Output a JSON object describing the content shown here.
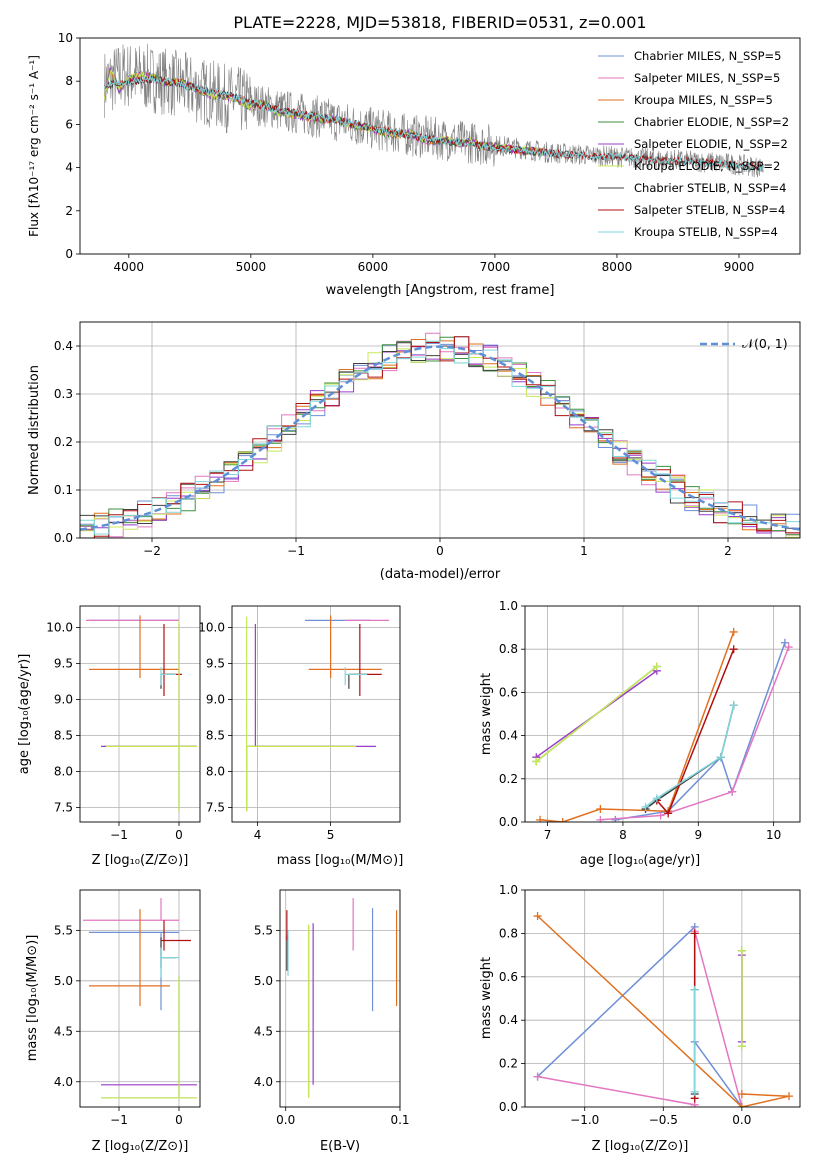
{
  "colors": {
    "Chabrier MILES": "#6f8fd6",
    "Salpeter MILES": "#e377c2",
    "Kroupa MILES": "#e07020",
    "Chabrier ELODIE": "#3e8f3e",
    "Salpeter ELODIE": "#9a3cc9",
    "Kroupa ELODIE": "#c8e85a",
    "Chabrier STELIB": "#404040",
    "Salpeter STELIB": "#b01010",
    "Kroupa STELIB": "#7fd6dc"
  },
  "chart_data": [
    {
      "id": "spectrum",
      "type": "line",
      "title": "PLATE=2228, MJD=53818, FIBERID=0531, z=0.001",
      "xlabel": "wavelength [Angstrom, rest frame]",
      "ylabel": "Flux [fλ10⁻¹⁷ erg cm⁻² s⁻¹ A⁻¹]",
      "xlim": [
        3600,
        9500
      ],
      "ylim": [
        0,
        10
      ],
      "xticks": [
        "4000",
        "5000",
        "6000",
        "7000",
        "8000",
        "9000"
      ],
      "yticks": [
        "0",
        "2",
        "4",
        "6",
        "8",
        "10"
      ],
      "legend_position": "top-right",
      "legend": [
        "Chabrier MILES, N_SSP=5",
        "Salpeter MILES, N_SSP=5",
        "Kroupa MILES, N_SSP=5",
        "Chabrier ELODIE, N_SSP=2",
        "Salpeter ELODIE, N_SSP=2",
        "Kroupa ELODIE, N_SSP=2",
        "Chabrier STELIB, N_SSP=4",
        "Salpeter STELIB, N_SSP=4",
        "Kroupa STELIB, N_SSP=4"
      ],
      "data_line": {
        "x": [
          3800,
          3950,
          4100,
          4300,
          4500,
          4800,
          5000,
          5300,
          5600,
          6000,
          6300,
          6600,
          6900,
          7200,
          7450,
          7700,
          8000,
          8300,
          8600,
          8900,
          9200
        ],
        "y": [
          7.9,
          8.3,
          8.2,
          8.0,
          7.7,
          7.2,
          7.0,
          6.6,
          6.3,
          5.8,
          5.5,
          5.3,
          5.1,
          4.9,
          4.7,
          4.6,
          4.5,
          4.4,
          4.3,
          4.2,
          4.0
        ]
      },
      "model_x": [
        3800,
        3850,
        3920,
        4000,
        4100,
        4200,
        4300,
        4400,
        4500,
        4600,
        4700,
        4800,
        4900,
        5000,
        5100,
        5200,
        5300,
        5400,
        5500,
        5600,
        5700,
        5800,
        5900,
        6000,
        6100,
        6200,
        6300,
        6400,
        6500,
        6600,
        6700,
        6800,
        6900,
        7000,
        7100,
        7200,
        7300,
        7400
      ],
      "model_y": [
        7.3,
        8.6,
        7.6,
        8.1,
        8.3,
        8.2,
        7.9,
        8.0,
        7.8,
        7.5,
        7.3,
        7.3,
        7.1,
        6.8,
        7.0,
        6.6,
        6.5,
        6.4,
        6.3,
        6.2,
        6.3,
        6.0,
        5.9,
        5.8,
        5.6,
        5.5,
        5.6,
        5.3,
        5.2,
        5.3,
        5.1,
        5.2,
        5.0,
        5.0,
        4.9,
        4.8,
        4.8,
        4.7
      ],
      "stelib_x": [
        3800,
        4000,
        4200,
        4400,
        4600,
        4800,
        5000,
        5200,
        5400,
        5600,
        5800,
        6000,
        6200,
        6400,
        6600,
        6800,
        7000,
        7200,
        7400,
        7600,
        7800,
        8000,
        8200,
        8400,
        8600,
        8800,
        9000,
        9200
      ],
      "stelib_y": [
        7.8,
        8.0,
        8.1,
        7.9,
        7.6,
        7.4,
        7.0,
        6.7,
        6.5,
        6.3,
        6.1,
        5.8,
        5.6,
        5.4,
        5.2,
        5.1,
        4.9,
        4.8,
        4.7,
        4.6,
        4.5,
        4.5,
        4.4,
        4.3,
        4.3,
        4.2,
        4.1,
        4.0
      ]
    },
    {
      "id": "residuals",
      "type": "line",
      "xlabel": "(data-model)/error",
      "ylabel": "Normed distribution",
      "xlim": [
        -2.5,
        2.5
      ],
      "ylim": [
        0,
        0.45
      ],
      "xticks": [
        "−2",
        "−1",
        "0",
        "1",
        "2"
      ],
      "yticks": [
        "0.0",
        "0.1",
        "0.2",
        "0.3",
        "0.4"
      ],
      "legend_position": "top-right",
      "legend": [
        "𝒩(0, 1)"
      ],
      "bin_width": 0.1,
      "grid": true
    },
    {
      "id": "age-vs-Z",
      "type": "scatter",
      "xlabel": "Z [log₁₀(Z/Z⊙)]",
      "ylabel": "age  [log₁₀(age/yr)]",
      "xlim": [
        -1.65,
        0.35
      ],
      "ylim": [
        7.3,
        10.3
      ],
      "xticks": [
        "−1",
        "0"
      ],
      "yticks": [
        "7.5",
        "8.0",
        "8.5",
        "9.0",
        "9.5",
        "10.0"
      ],
      "grid": true,
      "errorbars": [
        {
          "series": "Chabrier MILES",
          "x": -0.3,
          "y": 10.1,
          "xerr": [
            1.2,
            0.3
          ],
          "yerr": [
            0.0,
            0.0
          ]
        },
        {
          "series": "Salpeter MILES",
          "x": -0.3,
          "y": 10.1,
          "xerr": [
            1.25,
            0.3
          ],
          "yerr": [
            0.0,
            0.0
          ]
        },
        {
          "series": "Kroupa MILES",
          "x": -0.65,
          "y": 9.42,
          "xerr": [
            0.85,
            0.65
          ],
          "yerr": [
            0.12,
            0.75
          ]
        },
        {
          "series": "Chabrier STELIB",
          "x": -0.3,
          "y": 9.35,
          "xerr": [
            0.0,
            0.22
          ],
          "yerr": [
            0.2,
            0.0
          ]
        },
        {
          "series": "Salpeter STELIB",
          "x": -0.25,
          "y": 9.35,
          "xerr": [
            0.05,
            0.3
          ],
          "yerr": [
            0.3,
            0.7
          ]
        },
        {
          "series": "Kroupa STELIB",
          "x": -0.3,
          "y": 9.35,
          "xerr": [
            0.0,
            0.25
          ],
          "yerr": [
            0.15,
            0.1
          ]
        },
        {
          "series": "Chabrier ELODIE",
          "x": 0.0,
          "y": 8.35,
          "xerr": [
            1.25,
            0.3
          ],
          "yerr": [
            0.9,
            0.0
          ]
        },
        {
          "series": "Salpeter ELODIE",
          "x": 0.0,
          "y": 8.35,
          "xerr": [
            1.3,
            0.3
          ],
          "yerr": [
            0.0,
            1.7
          ]
        },
        {
          "series": "Kroupa ELODIE",
          "x": 0.0,
          "y": 8.35,
          "xerr": [
            1.22,
            0.3
          ],
          "yerr": [
            0.9,
            1.75
          ]
        }
      ]
    },
    {
      "id": "age-vs-mass",
      "type": "scatter",
      "xlabel": "mass [log₁₀(M/M⊙)]",
      "ylabel": "",
      "xlim": [
        3.65,
        5.95
      ],
      "ylim": [
        7.3,
        10.3
      ],
      "xticks": [
        "4",
        "5"
      ],
      "yticks": [
        "7.5",
        "8.0",
        "8.5",
        "9.0",
        "9.5",
        "10.0"
      ],
      "grid": true,
      "errorbars": [
        {
          "series": "Chabrier MILES",
          "x": 5.2,
          "y": 10.1,
          "xerr": [
            0.55,
            0.35
          ],
          "yerr": [
            0.0,
            0.0
          ]
        },
        {
          "series": "Salpeter MILES",
          "x": 5.5,
          "y": 10.1,
          "xerr": [
            0.3,
            0.3
          ],
          "yerr": [
            0.0,
            0.0
          ]
        },
        {
          "series": "Kroupa MILES",
          "x": 5.0,
          "y": 9.42,
          "xerr": [
            0.3,
            0.7
          ],
          "yerr": [
            0.12,
            0.75
          ]
        },
        {
          "series": "Chabrier STELIB",
          "x": 5.25,
          "y": 9.35,
          "xerr": [
            0.0,
            0.25
          ],
          "yerr": [
            0.2,
            0.0
          ]
        },
        {
          "series": "Salpeter STELIB",
          "x": 5.4,
          "y": 9.35,
          "xerr": [
            0.1,
            0.3
          ],
          "yerr": [
            0.3,
            0.7
          ]
        },
        {
          "series": "Kroupa STELIB",
          "x": 5.2,
          "y": 9.35,
          "xerr": [
            0.0,
            0.3
          ],
          "yerr": [
            0.15,
            0.1
          ]
        },
        {
          "series": "Chabrier ELODIE",
          "x": 3.85,
          "y": 8.35,
          "xerr": [
            0.0,
            1.5
          ],
          "yerr": [
            0.9,
            0.0
          ]
        },
        {
          "series": "Salpeter ELODIE",
          "x": 3.97,
          "y": 8.35,
          "xerr": [
            0.0,
            1.65
          ],
          "yerr": [
            0.0,
            1.7
          ]
        },
        {
          "series": "Kroupa ELODIE",
          "x": 3.85,
          "y": 8.35,
          "xerr": [
            0.0,
            1.5
          ],
          "yerr": [
            0.9,
            1.8
          ]
        }
      ]
    },
    {
      "id": "massweight-vs-age",
      "type": "line",
      "xlabel": "age  [log₁₀(age/yr)]",
      "ylabel": "mass weight",
      "xlim": [
        6.7,
        10.35
      ],
      "ylim": [
        0,
        1
      ],
      "xticks": [
        "7",
        "8",
        "9",
        "10"
      ],
      "yticks": [
        "0.0",
        "0.2",
        "0.4",
        "0.6",
        "0.8",
        "1.0"
      ],
      "grid": true,
      "series": [
        {
          "name": "Chabrier MILES",
          "x": [
            7.9,
            8.6,
            9.3,
            9.45,
            10.15
          ],
          "y": [
            0.01,
            0.05,
            0.3,
            0.14,
            0.83
          ]
        },
        {
          "name": "Salpeter MILES",
          "x": [
            7.7,
            8.5,
            9.45,
            10.2
          ],
          "y": [
            0.01,
            0.03,
            0.14,
            0.81
          ]
        },
        {
          "name": "Kroupa MILES",
          "x": [
            6.9,
            7.2,
            7.7,
            8.6,
            9.47
          ],
          "y": [
            0.01,
            0.0,
            0.06,
            0.05,
            0.88
          ]
        },
        {
          "name": "Chabrier ELODIE",
          "x": [
            6.85,
            8.45
          ],
          "y": [
            0.28,
            0.72
          ]
        },
        {
          "name": "Salpeter ELODIE",
          "x": [
            6.85,
            8.45
          ],
          "y": [
            0.3,
            0.7
          ]
        },
        {
          "name": "Kroupa ELODIE",
          "x": [
            6.85,
            8.45
          ],
          "y": [
            0.28,
            0.72
          ]
        },
        {
          "name": "Chabrier STELIB",
          "x": [
            8.3,
            8.45,
            9.3,
            9.47
          ],
          "y": [
            0.06,
            0.1,
            0.3,
            0.54
          ]
        },
        {
          "name": "Salpeter STELIB",
          "x": [
            8.45,
            8.6,
            9.47
          ],
          "y": [
            0.1,
            0.04,
            0.8
          ]
        },
        {
          "name": "Kroupa STELIB",
          "x": [
            8.3,
            8.45,
            9.3,
            9.47
          ],
          "y": [
            0.07,
            0.11,
            0.3,
            0.54
          ]
        }
      ]
    },
    {
      "id": "mass-vs-Z",
      "type": "scatter",
      "xlabel": "Z [log₁₀(Z/Z⊙)]",
      "ylabel": "mass [log₁₀(M/M⊙)]",
      "xlim": [
        -1.65,
        0.35
      ],
      "ylim": [
        3.75,
        5.9
      ],
      "xticks": [
        "−1",
        "0"
      ],
      "yticks": [
        "4.0",
        "4.5",
        "5.0",
        "5.5"
      ],
      "grid": true,
      "errorbars": [
        {
          "series": "Chabrier MILES",
          "x": -0.3,
          "y": 5.48,
          "xerr": [
            1.2,
            0.3
          ],
          "yerr": [
            0.77,
            0.0
          ]
        },
        {
          "series": "Salpeter MILES",
          "x": -0.3,
          "y": 5.6,
          "xerr": [
            1.3,
            0.3
          ],
          "yerr": [
            0.0,
            0.22
          ]
        },
        {
          "series": "Kroupa MILES",
          "x": -0.65,
          "y": 4.95,
          "xerr": [
            0.85,
            0.5
          ],
          "yerr": [
            0.2,
            0.76
          ]
        },
        {
          "series": "Chabrier STELIB",
          "x": -0.3,
          "y": 5.23,
          "xerr": [
            0.0,
            0.25
          ],
          "yerr": [
            0.1,
            0.2
          ]
        },
        {
          "series": "Salpeter STELIB",
          "x": -0.25,
          "y": 5.4,
          "xerr": [
            0.05,
            0.45
          ],
          "yerr": [
            0.1,
            0.2
          ]
        },
        {
          "series": "Kroupa STELIB",
          "x": -0.3,
          "y": 5.23,
          "xerr": [
            0.0,
            0.3
          ],
          "yerr": [
            0.2,
            0.1
          ]
        },
        {
          "series": "Chabrier ELODIE",
          "x": 0.0,
          "y": 3.84,
          "xerr": [
            1.3,
            0.3
          ],
          "yerr": [
            0.0,
            1.2
          ]
        },
        {
          "series": "Salpeter ELODIE",
          "x": 0.0,
          "y": 3.97,
          "xerr": [
            1.3,
            0.3
          ],
          "yerr": [
            0.0,
            0.0
          ]
        },
        {
          "series": "Kroupa ELODIE",
          "x": 0.0,
          "y": 3.84,
          "xerr": [
            1.3,
            0.3
          ],
          "yerr": [
            0.0,
            1.2
          ]
        }
      ]
    },
    {
      "id": "mass-vs-ebv",
      "type": "scatter",
      "xlabel": "E(B-V)",
      "ylabel": "",
      "xlim": [
        -0.005,
        0.1
      ],
      "ylim": [
        3.75,
        5.9
      ],
      "xticks": [
        "0.0",
        "0.1"
      ],
      "yticks": [
        "4.0",
        "4.5",
        "5.0",
        "5.5"
      ],
      "grid": true,
      "errorbars": [
        {
          "series": "Chabrier MILES",
          "x": 0.076,
          "y": 5.25,
          "xerr": [
            0,
            0
          ],
          "yerr": [
            0.55,
            0.47
          ]
        },
        {
          "series": "Salpeter MILES",
          "x": 0.059,
          "y": 5.45,
          "xerr": [
            0,
            0
          ],
          "yerr": [
            0.15,
            0.37
          ]
        },
        {
          "series": "Kroupa MILES",
          "x": 0.097,
          "y": 5.2,
          "xerr": [
            0,
            0
          ],
          "yerr": [
            0.45,
            0.5
          ]
        },
        {
          "series": "Chabrier STELIB",
          "x": 0.001,
          "y": 5.3,
          "xerr": [
            0,
            0
          ],
          "yerr": [
            0.2,
            0.15
          ]
        },
        {
          "series": "Salpeter STELIB",
          "x": 0.001,
          "y": 5.5,
          "xerr": [
            0,
            0
          ],
          "yerr": [
            0.1,
            0.2
          ]
        },
        {
          "series": "Kroupa STELIB",
          "x": 0.002,
          "y": 5.3,
          "xerr": [
            0,
            0
          ],
          "yerr": [
            0.25,
            0.2
          ]
        },
        {
          "series": "Chabrier ELODIE",
          "x": 0.02,
          "y": 4.7,
          "xerr": [
            0,
            0
          ],
          "yerr": [
            0.85,
            0.85
          ]
        },
        {
          "series": "Salpeter ELODIE",
          "x": 0.024,
          "y": 4.77,
          "xerr": [
            0,
            0
          ],
          "yerr": [
            0.8,
            0.8
          ]
        },
        {
          "series": "Kroupa ELODIE",
          "x": 0.02,
          "y": 4.7,
          "xerr": [
            0,
            0
          ],
          "yerr": [
            0.86,
            0.86
          ]
        }
      ]
    },
    {
      "id": "massweight-vs-Z",
      "type": "line",
      "xlabel": "Z [log₁₀(Z/Z⊙)]",
      "ylabel": "mass weight",
      "xlim": [
        -1.38,
        0.37
      ],
      "ylim": [
        0,
        1
      ],
      "xticks": [
        "−1.0",
        "−0.5",
        "0.0"
      ],
      "yticks": [
        "0.0",
        "0.2",
        "0.4",
        "0.6",
        "0.8",
        "1.0"
      ],
      "grid": true,
      "series": [
        {
          "name": "Chabrier MILES",
          "x": [
            -1.3,
            -0.3,
            -0.3,
            0.0
          ],
          "y": [
            0.14,
            0.83,
            0.3,
            0.0
          ]
        },
        {
          "name": "Salpeter MILES",
          "x": [
            -1.3,
            -0.3,
            -0.3,
            0.0
          ],
          "y": [
            0.14,
            0.01,
            0.81,
            0.0
          ]
        },
        {
          "name": "Kroupa MILES",
          "x": [
            -1.3,
            0.0,
            0.3,
            0.0
          ],
          "y": [
            0.88,
            0.0,
            0.05,
            0.06
          ]
        },
        {
          "name": "Chabrier ELODIE",
          "x": [
            0.0,
            0.0
          ],
          "y": [
            0.72,
            0.28
          ]
        },
        {
          "name": "Salpeter ELODIE",
          "x": [
            0.0,
            0.0
          ],
          "y": [
            0.7,
            0.3
          ]
        },
        {
          "name": "Kroupa ELODIE",
          "x": [
            0.0,
            0.0
          ],
          "y": [
            0.72,
            0.28
          ]
        },
        {
          "name": "Chabrier STELIB",
          "x": [
            -0.3,
            -0.3
          ],
          "y": [
            0.54,
            0.06
          ]
        },
        {
          "name": "Salpeter STELIB",
          "x": [
            -0.3,
            -0.3
          ],
          "y": [
            0.8,
            0.04
          ]
        },
        {
          "name": "Kroupa STELIB",
          "x": [
            -0.3,
            -0.3
          ],
          "y": [
            0.54,
            0.07
          ]
        }
      ]
    }
  ]
}
